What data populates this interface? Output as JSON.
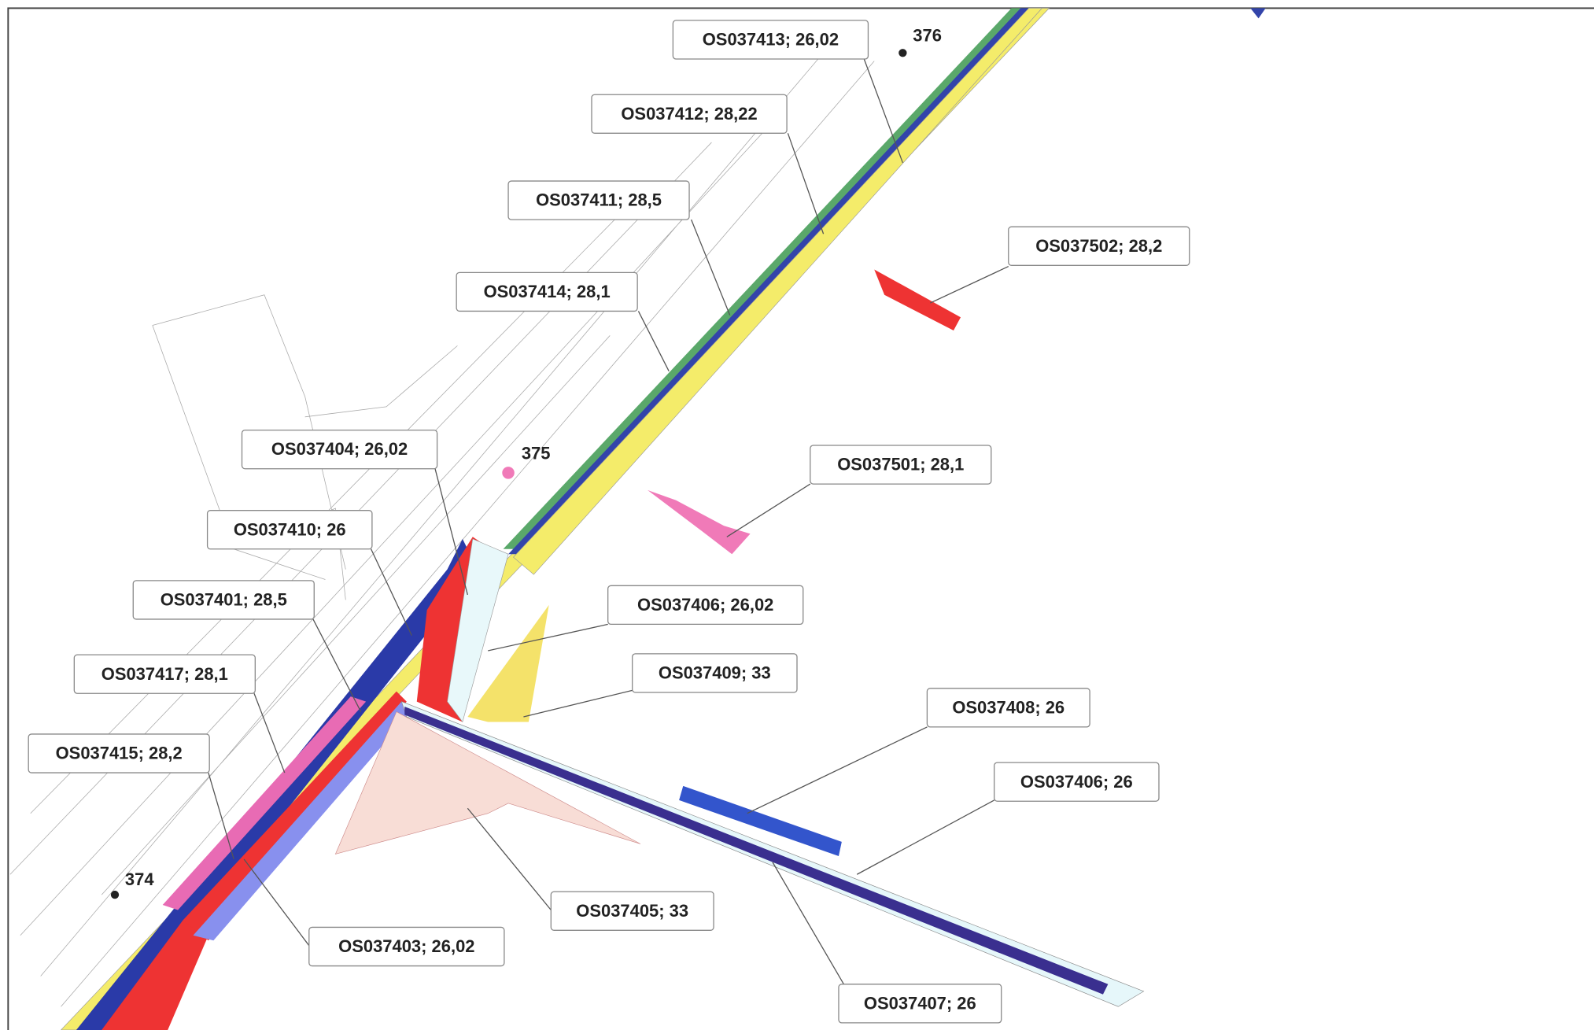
{
  "labels": [
    "OS037413; 26,02",
    "OS037412; 28,22",
    "OS037411; 28,5",
    "OS037414; 28,1",
    "OS037502; 28,2",
    "OS037501; 28,1",
    "OS037404; 26,02",
    "OS037410; 26",
    "OS037406; 26,02",
    "OS037401; 28,5",
    "OS037409; 33",
    "OS037417; 28,1",
    "OS037408; 26",
    "OS037415; 28,2",
    "OS037406; 26",
    "OS037405; 33",
    "OS037403; 26,02",
    "OS037407; 26"
  ],
  "points": [
    "376",
    "375",
    "374"
  ]
}
